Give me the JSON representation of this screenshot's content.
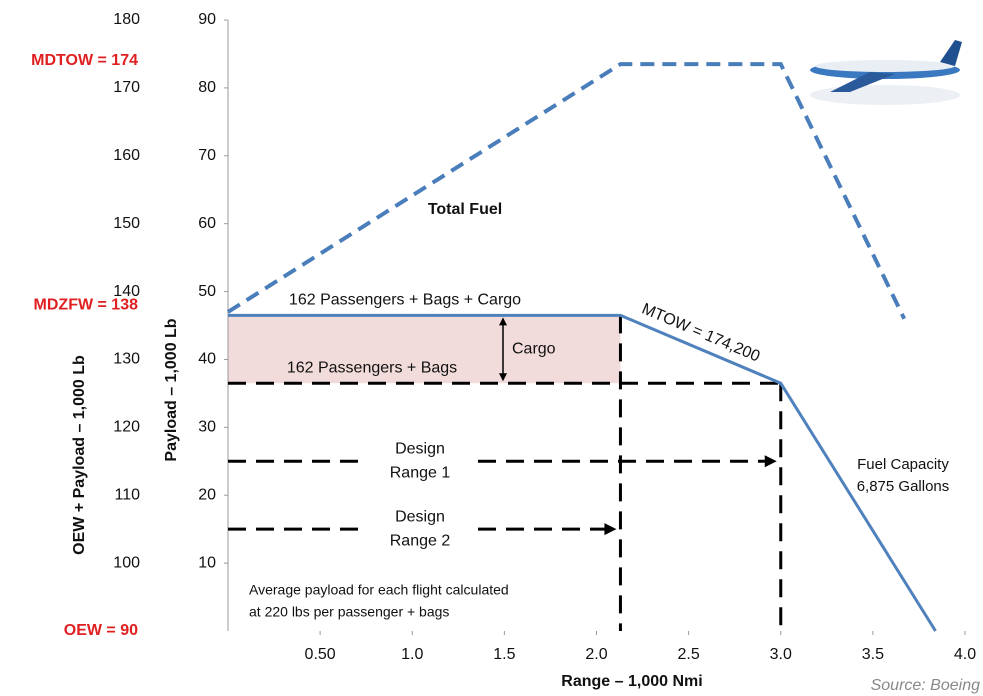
{
  "chart_data": {
    "type": "line",
    "x_label": "Range – 1,000 Nmi",
    "y_label": "Payload – 1,000 Lb",
    "y2_label": "OEW + Payload – 1,000 Lb",
    "xlim": [
      0,
      4.0
    ],
    "xticks": [
      {
        "value": 0.5,
        "label": "0.50"
      },
      {
        "value": 1,
        "label": "1.0"
      },
      1.5,
      {
        "value": 2,
        "label": "2.0"
      },
      2.5,
      {
        "value": 3,
        "label": "3.0"
      },
      3.5,
      {
        "value": 4,
        "label": "4.0"
      }
    ],
    "ylim": [
      0,
      90
    ],
    "yticks": [
      10,
      20,
      30,
      40,
      50,
      60,
      70,
      80,
      90
    ],
    "y2lim": [
      90,
      180
    ],
    "y2ticks": [
      100,
      110,
      120,
      130,
      140,
      150,
      160,
      170,
      180
    ],
    "series": [
      {
        "name": "Total Fuel",
        "color": "#4a7ebb",
        "dashed": true,
        "x": [
          0,
          2.13,
          3.0,
          3.67
        ],
        "values": [
          47,
          83.5,
          83.5,
          46
        ]
      },
      {
        "name": "MTOW = 174,200",
        "color": "#4f81bd",
        "dashed": false,
        "x": [
          0,
          2.13,
          3.0,
          3.84
        ],
        "values": [
          46.5,
          46.5,
          36.5,
          0
        ]
      }
    ],
    "weight_labels": [
      {
        "label": "MDTOW = 174",
        "value": 174
      },
      {
        "label": "MDZFW = 138",
        "value": 138
      },
      {
        "label": "OEW = 90",
        "value": 90
      }
    ],
    "payload_labels": [
      "162 Passengers + Bags + Cargo",
      "162 Passengers + Bags",
      "Cargo"
    ],
    "design_ranges": [
      {
        "lines": [
          "Design",
          "Range 1"
        ],
        "y": 25
      },
      {
        "lines": [
          "Design",
          "Range 2"
        ],
        "y": 15
      }
    ],
    "fuel_capacity": [
      "Fuel Capacity",
      "6,875 Gallons"
    ],
    "note": [
      "Average payload for each flight calculated",
      "at 220 lbs per passenger + bags"
    ],
    "source": "Source:  Boeing"
  }
}
